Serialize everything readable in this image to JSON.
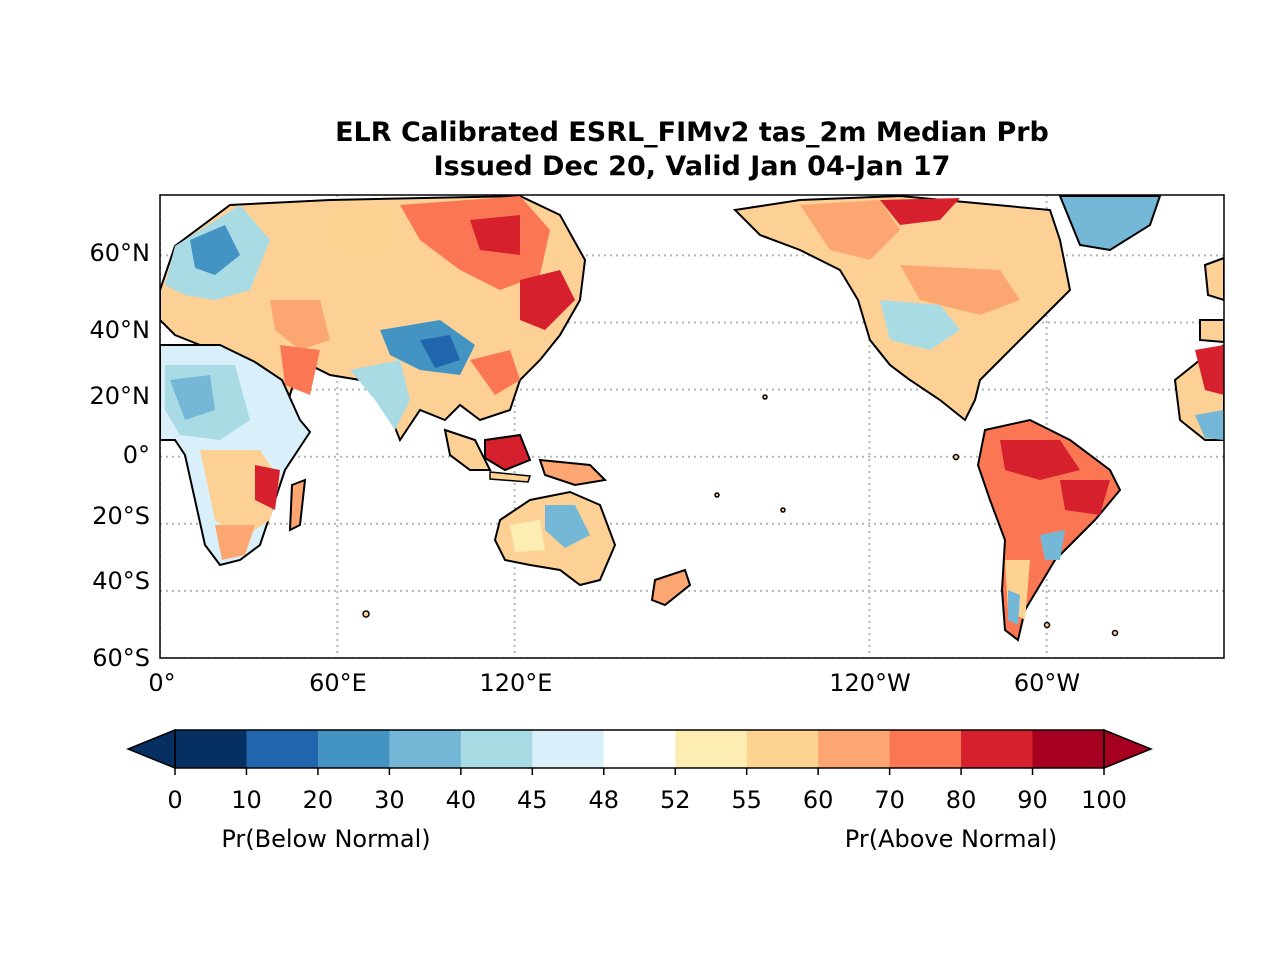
{
  "title": {
    "line1": "ELR Calibrated ESRL_FIMv2 tas_2m Median Prb",
    "line2": "Issued Dec 20, Valid Jan 04-Jan 17"
  },
  "map": {
    "projection": "equirectangular",
    "lon_range": [
      0,
      360
    ],
    "lat_range": [
      -60,
      78
    ],
    "grid": "dotted",
    "lat_ticks": [
      {
        "value": 60,
        "label": "60°N"
      },
      {
        "value": 40,
        "label": "40°N"
      },
      {
        "value": 20,
        "label": "20°N"
      },
      {
        "value": 0,
        "label": "0°"
      },
      {
        "value": -20,
        "label": "20°S"
      },
      {
        "value": -40,
        "label": "40°S"
      },
      {
        "value": -60,
        "label": "60°S"
      }
    ],
    "lon_ticks": [
      {
        "value": 0,
        "label": "0°"
      },
      {
        "value": 60,
        "label": "60°E"
      },
      {
        "value": 120,
        "label": "120°E"
      },
      {
        "value": 240,
        "label": "120°W"
      },
      {
        "value": 300,
        "label": "60°W"
      }
    ]
  },
  "colorbar": {
    "boundaries": [
      "0",
      "10",
      "20",
      "30",
      "40",
      "45",
      "48",
      "52",
      "55",
      "60",
      "70",
      "80",
      "90",
      "100"
    ],
    "colors": [
      "#053061",
      "#2166ac",
      "#4393c3",
      "#74b7d6",
      "#a8dbe4",
      "#d9f0fb",
      "#ffffff",
      "#fdedb3",
      "#fed392",
      "#fca771",
      "#fb7753",
      "#d6202e",
      "#a5001f"
    ],
    "under_color": "#053061",
    "over_color": "#a5001f",
    "below_label": "Pr(Below Normal)",
    "above_label": "Pr(Above Normal)"
  }
}
